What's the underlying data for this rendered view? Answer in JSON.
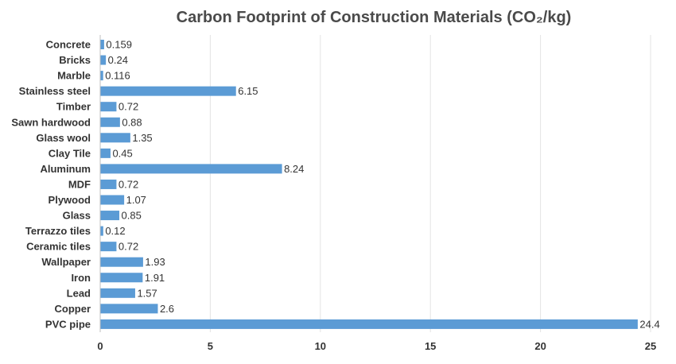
{
  "chart_data": {
    "type": "bar",
    "orientation": "horizontal",
    "title": "Carbon Footprint of Construction Materials (CO₂/kg)",
    "categories": [
      "Concrete",
      "Bricks",
      "Marble",
      "Stainless steel",
      "Timber",
      "Sawn hardwood",
      "Glass wool",
      "Clay Tile",
      "Aluminum",
      "MDF",
      "Plywood",
      "Glass",
      "Terrazzo tiles",
      "Ceramic tiles",
      "Wallpaper",
      "Iron",
      "Lead",
      "Copper",
      "PVC pipe"
    ],
    "values": [
      0.159,
      0.24,
      0.116,
      6.15,
      0.72,
      0.88,
      1.35,
      0.45,
      8.24,
      0.72,
      1.07,
      0.85,
      0.12,
      0.72,
      1.93,
      1.91,
      1.57,
      2.6,
      24.4
    ],
    "value_labels": [
      "0.159",
      "0.24",
      "0.116",
      "6.15",
      "0.72",
      "0.88",
      "1.35",
      "0.45",
      "8.24",
      "0.72",
      "1.07",
      "0.85",
      "0.12",
      "0.72",
      "1.93",
      "1.91",
      "1.57",
      "2.6",
      "24.4"
    ],
    "xlim": [
      0,
      25
    ],
    "x_ticks": [
      0,
      5,
      10,
      15,
      20,
      25
    ],
    "grid": true,
    "legend": "none",
    "bar_color": "#5b9bd5"
  }
}
